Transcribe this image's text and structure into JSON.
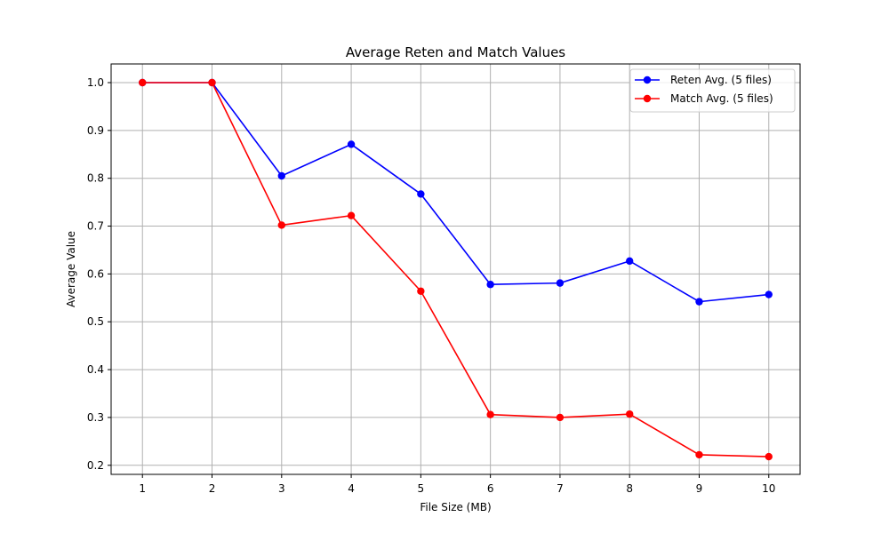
{
  "chart_data": {
    "type": "line",
    "title": "Average Reten and Match Values",
    "xlabel": "File Size (MB)",
    "ylabel": "Average Value",
    "x": [
      1,
      2,
      3,
      4,
      5,
      6,
      7,
      8,
      9,
      10
    ],
    "x_ticks": [
      "1",
      "2",
      "3",
      "4",
      "5",
      "6",
      "7",
      "8",
      "9",
      "10"
    ],
    "y_ticks": [
      "0.2",
      "0.3",
      "0.4",
      "0.5",
      "0.6",
      "0.7",
      "0.8",
      "0.9",
      "1.0"
    ],
    "xlim": [
      0.55,
      10.45
    ],
    "ylim": [
      0.181,
      1.039
    ],
    "grid": true,
    "legend_position": "top-right",
    "series": [
      {
        "name": "Reten Avg. (5 files)",
        "color": "#0000ff",
        "values": [
          1.0,
          1.0,
          0.805,
          0.871,
          0.767,
          0.578,
          0.581,
          0.627,
          0.542,
          0.557
        ]
      },
      {
        "name": "Match Avg. (5 files)",
        "color": "#ff0000",
        "values": [
          1.0,
          1.0,
          0.702,
          0.722,
          0.564,
          0.306,
          0.3,
          0.307,
          0.222,
          0.218
        ]
      }
    ]
  }
}
